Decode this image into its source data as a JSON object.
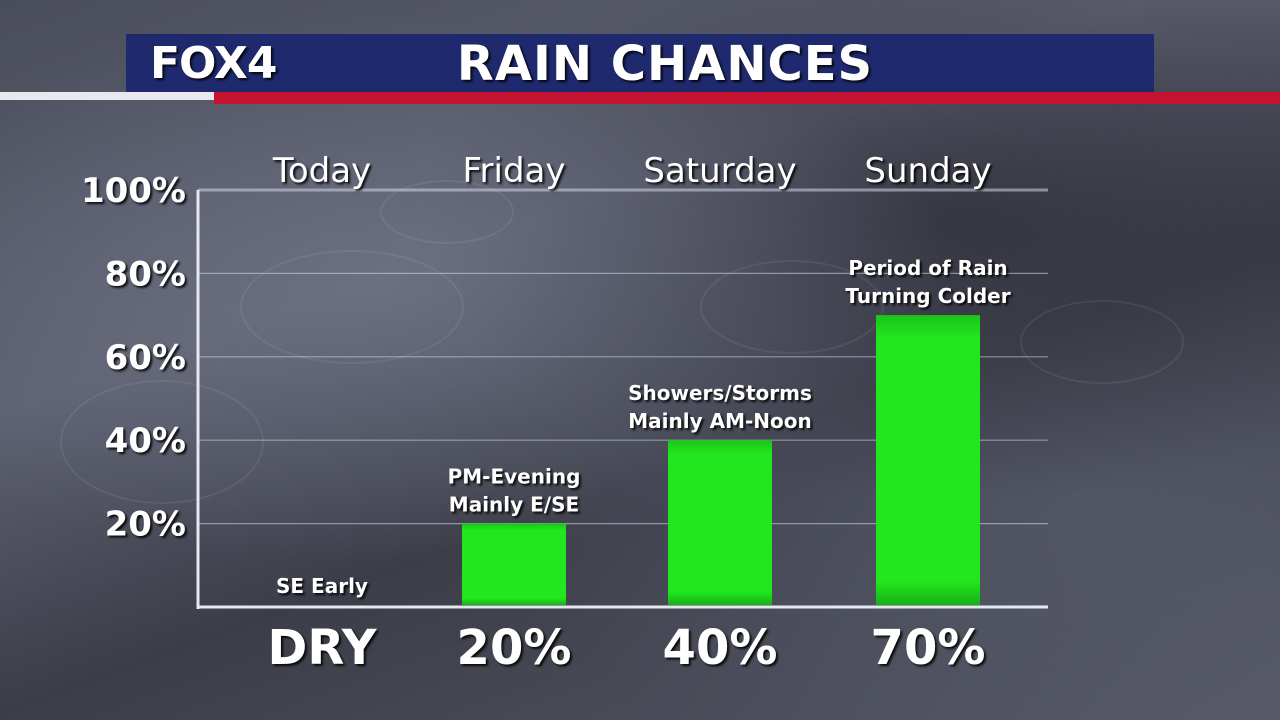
{
  "header": {
    "logo": "FOX4",
    "title": "RAIN CHANCES"
  },
  "chart_data": {
    "type": "bar",
    "categories": [
      "Today",
      "Friday",
      "Saturday",
      "Sunday"
    ],
    "values": [
      0,
      20,
      40,
      70
    ],
    "value_labels": [
      "DRY",
      "20%",
      "40%",
      "70%"
    ],
    "annotations": [
      [
        "SE Early"
      ],
      [
        "PM-Evening",
        "Mainly E/SE"
      ],
      [
        "Showers/Storms",
        "Mainly AM-Noon"
      ],
      [
        "Period of Rain",
        "Turning Colder"
      ]
    ],
    "y_ticks": [
      "20%",
      "40%",
      "60%",
      "80%",
      "100%"
    ],
    "ylim": [
      0,
      100
    ],
    "grid": true,
    "bar_color": "#22e61e"
  }
}
